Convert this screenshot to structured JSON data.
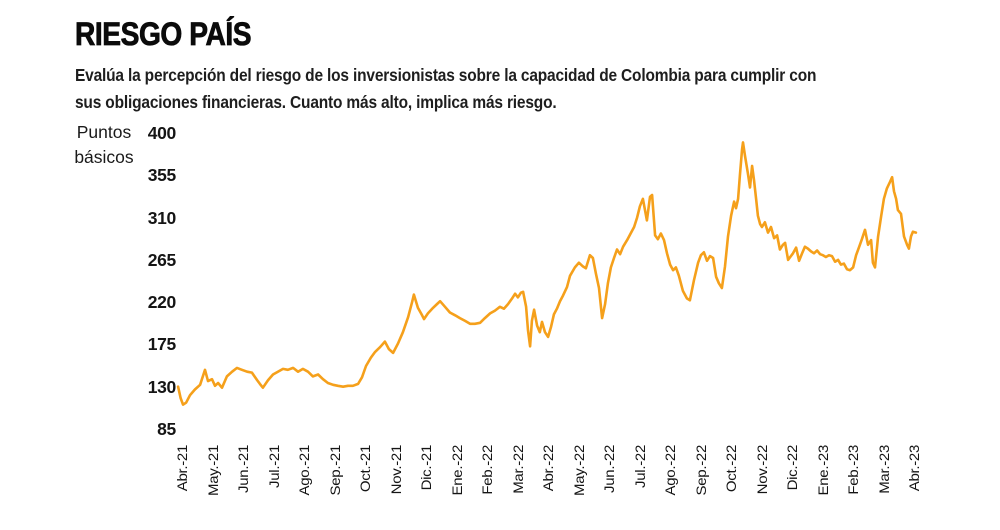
{
  "header": {
    "title": "RIESGO PAÍS",
    "subtitle_lines": [
      "Evalúa la percepción del riesgo de los inversionistas sobre la capacidad de Colombia para cumplir con",
      "sus obligaciones financieras. Cuanto más alto, implica más riesgo."
    ]
  },
  "colors": {
    "line": "#F5A01B",
    "text": "#111111",
    "background": "#FFFFFF"
  },
  "chart_data": {
    "type": "line",
    "title": "RIESGO PAÍS",
    "xlabel": "",
    "ylabel": "Puntos básicos",
    "ylim": [
      85,
      400
    ],
    "yticks": [
      400,
      355,
      310,
      265,
      220,
      175,
      130,
      85
    ],
    "grid": false,
    "legend": false,
    "line_color": "#F5A01B",
    "x_tick_labels": [
      "Abr.-21",
      "May.-21",
      "Jun.-21",
      "Jul.-21",
      "Ago.-21",
      "Sep.-21",
      "Oct.-21",
      "Nov.-21",
      "Dic.-21",
      "Ene.-22",
      "Feb.-22",
      "Mar.-22",
      "Abr.-22",
      "May.-22",
      "Jun.-22",
      "Jul.-22",
      "Ago.-22",
      "Sep.-22",
      "Oct.-22",
      "Nov.-22",
      "Dic.-22",
      "Ene.-23",
      "Feb.-23",
      "Mar.-23",
      "Abr.-23"
    ],
    "x_unit": "month index (0 = Abr.-21, 24 = Abr.-23)",
    "series": [
      {
        "points": [
          [
            -0.16,
            130
          ],
          [
            -0.08,
            118
          ],
          [
            0,
            111
          ],
          [
            0.1,
            113
          ],
          [
            0.23,
            121
          ],
          [
            0.39,
            127
          ],
          [
            0.56,
            132
          ],
          [
            0.72,
            148
          ],
          [
            0.82,
            136
          ],
          [
            0.95,
            138
          ],
          [
            1.05,
            131
          ],
          [
            1.15,
            134
          ],
          [
            1.28,
            129
          ],
          [
            1.44,
            141
          ],
          [
            1.61,
            146
          ],
          [
            1.77,
            150
          ],
          [
            1.93,
            148
          ],
          [
            2.1,
            146
          ],
          [
            2.26,
            145
          ],
          [
            2.43,
            137
          ],
          [
            2.52,
            133
          ],
          [
            2.62,
            129
          ],
          [
            2.79,
            137
          ],
          [
            2.95,
            143
          ],
          [
            3.11,
            146
          ],
          [
            3.28,
            149
          ],
          [
            3.44,
            148
          ],
          [
            3.61,
            150
          ],
          [
            3.77,
            146
          ],
          [
            3.93,
            149
          ],
          [
            4.1,
            146
          ],
          [
            4.26,
            141
          ],
          [
            4.43,
            143
          ],
          [
            4.59,
            138
          ],
          [
            4.75,
            134
          ],
          [
            4.92,
            132
          ],
          [
            5.08,
            131
          ],
          [
            5.25,
            130
          ],
          [
            5.41,
            131
          ],
          [
            5.57,
            131
          ],
          [
            5.74,
            133
          ],
          [
            5.87,
            140
          ],
          [
            6.0,
            152
          ],
          [
            6.16,
            161
          ],
          [
            6.3,
            167
          ],
          [
            6.46,
            172
          ],
          [
            6.62,
            178
          ],
          [
            6.75,
            170
          ],
          [
            6.89,
            166
          ],
          [
            7.05,
            176
          ],
          [
            7.21,
            188
          ],
          [
            7.38,
            204
          ],
          [
            7.51,
            220
          ],
          [
            7.57,
            228
          ],
          [
            7.7,
            214
          ],
          [
            7.84,
            206
          ],
          [
            7.9,
            202
          ],
          [
            8.03,
            208
          ],
          [
            8.2,
            214
          ],
          [
            8.33,
            218
          ],
          [
            8.43,
            221
          ],
          [
            8.59,
            215
          ],
          [
            8.75,
            209
          ],
          [
            8.92,
            206
          ],
          [
            9.08,
            203
          ],
          [
            9.25,
            200
          ],
          [
            9.41,
            197
          ],
          [
            9.57,
            197
          ],
          [
            9.74,
            198
          ],
          [
            9.9,
            203
          ],
          [
            10.07,
            208
          ],
          [
            10.23,
            211
          ],
          [
            10.39,
            215
          ],
          [
            10.52,
            213
          ],
          [
            10.66,
            218
          ],
          [
            10.79,
            224
          ],
          [
            10.89,
            229
          ],
          [
            10.98,
            225
          ],
          [
            11.08,
            230
          ],
          [
            11.15,
            231
          ],
          [
            11.25,
            215
          ],
          [
            11.31,
            190
          ],
          [
            11.38,
            173
          ],
          [
            11.44,
            200
          ],
          [
            11.51,
            212
          ],
          [
            11.61,
            195
          ],
          [
            11.7,
            188
          ],
          [
            11.77,
            199
          ],
          [
            11.87,
            188
          ],
          [
            11.97,
            183
          ],
          [
            12.07,
            194
          ],
          [
            12.16,
            207
          ],
          [
            12.26,
            213
          ],
          [
            12.36,
            221
          ],
          [
            12.46,
            227
          ],
          [
            12.59,
            236
          ],
          [
            12.69,
            248
          ],
          [
            12.85,
            257
          ],
          [
            12.98,
            262
          ],
          [
            13.11,
            258
          ],
          [
            13.21,
            256
          ],
          [
            13.34,
            270
          ],
          [
            13.44,
            267
          ],
          [
            13.54,
            250
          ],
          [
            13.64,
            235
          ],
          [
            13.74,
            203
          ],
          [
            13.84,
            218
          ],
          [
            13.93,
            240
          ],
          [
            14.03,
            257
          ],
          [
            14.13,
            267
          ],
          [
            14.23,
            276
          ],
          [
            14.33,
            271
          ],
          [
            14.43,
            279
          ],
          [
            14.56,
            286
          ],
          [
            14.66,
            292
          ],
          [
            14.79,
            300
          ],
          [
            14.89,
            310
          ],
          [
            14.98,
            322
          ],
          [
            15.08,
            330
          ],
          [
            15.21,
            307
          ],
          [
            15.31,
            332
          ],
          [
            15.38,
            334
          ],
          [
            15.48,
            291
          ],
          [
            15.57,
            287
          ],
          [
            15.67,
            293
          ],
          [
            15.77,
            286
          ],
          [
            15.87,
            272
          ],
          [
            15.97,
            260
          ],
          [
            16.07,
            254
          ],
          [
            16.16,
            257
          ],
          [
            16.26,
            248
          ],
          [
            16.39,
            232
          ],
          [
            16.52,
            224
          ],
          [
            16.62,
            222
          ],
          [
            16.75,
            243
          ],
          [
            16.89,
            262
          ],
          [
            16.98,
            270
          ],
          [
            17.08,
            273
          ],
          [
            17.18,
            264
          ],
          [
            17.28,
            269
          ],
          [
            17.38,
            267
          ],
          [
            17.48,
            247
          ],
          [
            17.57,
            240
          ],
          [
            17.67,
            235
          ],
          [
            17.77,
            258
          ],
          [
            17.87,
            290
          ],
          [
            17.97,
            312
          ],
          [
            18.07,
            327
          ],
          [
            18.13,
            320
          ],
          [
            18.2,
            330
          ],
          [
            18.26,
            355
          ],
          [
            18.33,
            383
          ],
          [
            18.36,
            390
          ],
          [
            18.43,
            375
          ],
          [
            18.52,
            357
          ],
          [
            18.59,
            342
          ],
          [
            18.66,
            365
          ],
          [
            18.72,
            350
          ],
          [
            18.79,
            330
          ],
          [
            18.85,
            312
          ],
          [
            18.92,
            303
          ],
          [
            18.98,
            300
          ],
          [
            19.08,
            305
          ],
          [
            19.18,
            294
          ],
          [
            19.28,
            300
          ],
          [
            19.38,
            288
          ],
          [
            19.48,
            291
          ],
          [
            19.57,
            276
          ],
          [
            19.67,
            281
          ],
          [
            19.74,
            283
          ],
          [
            19.84,
            265
          ],
          [
            19.93,
            269
          ],
          [
            20.0,
            272
          ],
          [
            20.1,
            278
          ],
          [
            20.2,
            264
          ],
          [
            20.3,
            272
          ],
          [
            20.39,
            279
          ],
          [
            20.49,
            277
          ],
          [
            20.59,
            274
          ],
          [
            20.69,
            272
          ],
          [
            20.79,
            275
          ],
          [
            20.89,
            271
          ],
          [
            20.98,
            270
          ],
          [
            21.08,
            268
          ],
          [
            21.18,
            270
          ],
          [
            21.28,
            269
          ],
          [
            21.38,
            263
          ],
          [
            21.48,
            265
          ],
          [
            21.57,
            260
          ],
          [
            21.67,
            261
          ],
          [
            21.77,
            255
          ],
          [
            21.87,
            254
          ],
          [
            21.97,
            257
          ],
          [
            22.07,
            270
          ],
          [
            22.16,
            278
          ],
          [
            22.26,
            287
          ],
          [
            22.36,
            297
          ],
          [
            22.46,
            281
          ],
          [
            22.56,
            286
          ],
          [
            22.62,
            262
          ],
          [
            22.69,
            257
          ],
          [
            22.79,
            290
          ],
          [
            22.89,
            311
          ],
          [
            22.98,
            330
          ],
          [
            23.08,
            341
          ],
          [
            23.18,
            348
          ],
          [
            23.25,
            353
          ],
          [
            23.31,
            338
          ],
          [
            23.38,
            330
          ],
          [
            23.44,
            318
          ],
          [
            23.54,
            314
          ],
          [
            23.64,
            290
          ],
          [
            23.74,
            281
          ],
          [
            23.8,
            277
          ],
          [
            23.87,
            290
          ],
          [
            23.93,
            295
          ],
          [
            24.03,
            294
          ]
        ]
      }
    ]
  }
}
